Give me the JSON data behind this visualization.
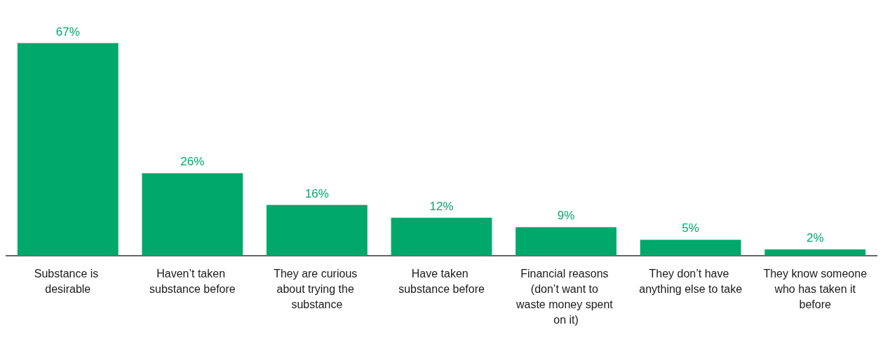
{
  "chart_data": {
    "type": "bar",
    "categories": [
      "Substance is desirable",
      "Haven’t taken substance before",
      "They are curious about trying the substance",
      "Have taken substance before",
      "Financial reasons (don’t want to waste money spent on it)",
      "They don’t have anything else to take",
      "They know someone who has taken it before"
    ],
    "values": [
      67,
      26,
      16,
      12,
      9,
      5,
      2
    ],
    "value_labels": [
      "67%",
      "26%",
      "16%",
      "12%",
      "9%",
      "5%",
      "2%"
    ],
    "color": "#00a86b",
    "grid": false
  }
}
